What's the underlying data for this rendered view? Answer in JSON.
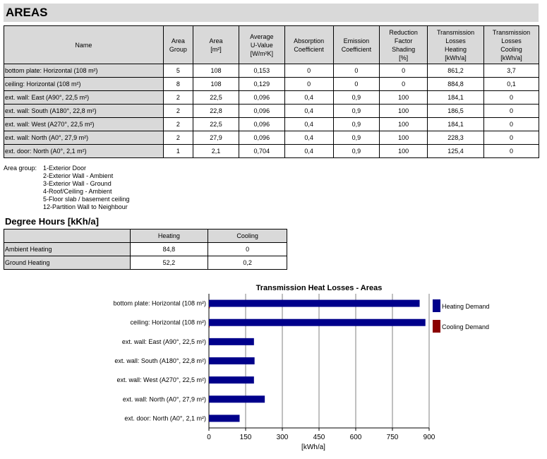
{
  "title": "AREAS",
  "areas": {
    "headers": [
      "Name",
      "Area\nGroup",
      "Area\n[m²]",
      "Average\nU-Value\n[W/m²K]",
      "Absorption\nCoefficient",
      "Emission\nCoefficient",
      "Reduction\nFactor\nShading\n[%]",
      "Transmission\nLosses\nHeating\n[kWh/a]",
      "Transmission\nLosses\nCooling\n[kWh/a]"
    ],
    "rows": [
      [
        "bottom plate: Horizontal (108 m²)",
        "5",
        "108",
        "0,153",
        "0",
        "0",
        "0",
        "861,2",
        "3,7"
      ],
      [
        "ceiling: Horizontal (108 m²)",
        "8",
        "108",
        "0,129",
        "0",
        "0",
        "0",
        "884,8",
        "0,1"
      ],
      [
        "ext. wall: East (A90°, 22,5 m²)",
        "2",
        "22,5",
        "0,096",
        "0,4",
        "0,9",
        "100",
        "184,1",
        "0"
      ],
      [
        "ext. wall: South (A180°, 22,8 m²)",
        "2",
        "22,8",
        "0,096",
        "0,4",
        "0,9",
        "100",
        "186,5",
        "0"
      ],
      [
        "ext. wall: West (A270°,  22,5 m²)",
        "2",
        "22,5",
        "0,096",
        "0,4",
        "0,9",
        "100",
        "184,1",
        "0"
      ],
      [
        "ext. wall: North (A0°, 27,9 m²)",
        "2",
        "27,9",
        "0,096",
        "0,4",
        "0,9",
        "100",
        "228,3",
        "0"
      ],
      [
        "ext. door: North (A0°, 2,1 m²)",
        "1",
        "2,1",
        "0,704",
        "0,4",
        "0,9",
        "100",
        "125,4",
        "0"
      ]
    ]
  },
  "area_group_legend": {
    "label": "Area group:",
    "items": [
      "1-Exterior Door",
      "2-Exterior Wall - Ambient",
      "3-Exterior Wall - Ground",
      "4-Roof/Ceiling - Ambient",
      "5-Floor slab / basement ceiling",
      "12-Partition Wall to Neighbour"
    ]
  },
  "degree_hours": {
    "title": "Degree Hours [kKh/a]",
    "headers": [
      "",
      "Heating",
      "Cooling"
    ],
    "rows": [
      [
        "Ambient Heating",
        "84,8",
        "0"
      ],
      [
        "Ground Heating",
        "52,2",
        "0,2"
      ]
    ]
  },
  "chart_data": {
    "type": "bar",
    "orientation": "horizontal",
    "title": "Transmission Heat Losses - Areas",
    "categories": [
      "bottom plate: Horizontal (108 m²)",
      "ceiling: Horizontal (108 m²)",
      "ext. wall: East (A90°, 22,5 m²)",
      "ext. wall: South (A180°, 22,8 m²)",
      "ext. wall: West (A270°, 22,5 m²)",
      "ext. wall: North (A0°, 27,9 m²)",
      "ext. door: North (A0°, 2,1 m²)"
    ],
    "series": [
      {
        "name": "Heating Demand",
        "color": "#00008b",
        "values": [
          861.2,
          884.8,
          184.1,
          186.5,
          184.1,
          228.3,
          125.4
        ]
      },
      {
        "name": "Cooling Demand",
        "color": "#8b0000",
        "values": [
          3.7,
          0.1,
          0,
          0,
          0,
          0,
          0
        ]
      }
    ],
    "xlabel": "[kWh/a]",
    "xlim": [
      0,
      900
    ],
    "xticks": [
      0,
      150,
      300,
      450,
      600,
      750,
      900
    ],
    "grid": true,
    "legend_position": "right"
  }
}
